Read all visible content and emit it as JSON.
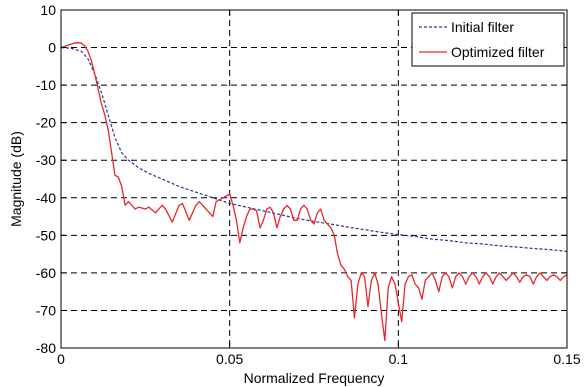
{
  "chart_data": {
    "type": "line",
    "title": "",
    "xlabel": "Normalized Frequency",
    "ylabel": "Magnitude (dB)",
    "xlim": [
      0,
      0.15
    ],
    "ylim": [
      -80,
      10
    ],
    "xticks": [
      0,
      0.05,
      0.1,
      0.15
    ],
    "xtick_labels": [
      "0",
      "0.05",
      "0.1",
      "0.15"
    ],
    "yticks": [
      10,
      0,
      -10,
      -20,
      -30,
      -40,
      -50,
      -60,
      -70,
      -80
    ],
    "ytick_labels": [
      "10",
      "0",
      "-10",
      "-20",
      "-30",
      "-40",
      "-50",
      "-60",
      "-70",
      "-80"
    ],
    "grid": true,
    "legend_position": "top-right",
    "series": [
      {
        "name": "Initial filter",
        "color": "#1f3a93",
        "style": "dashed",
        "x": [
          0,
          0.003,
          0.006,
          0.008,
          0.01,
          0.012,
          0.013,
          0.014,
          0.015,
          0.016,
          0.017,
          0.018,
          0.02,
          0.023,
          0.026,
          0.03,
          0.035,
          0.04,
          0.045,
          0.05,
          0.055,
          0.06,
          0.065,
          0.07,
          0.075,
          0.08,
          0.085,
          0.09,
          0.095,
          0.1,
          0.105,
          0.11,
          0.115,
          0.12,
          0.125,
          0.13,
          0.135,
          0.14,
          0.145,
          0.15
        ],
        "y": [
          0,
          -0.2,
          -1,
          -3,
          -7,
          -12,
          -15,
          -18,
          -21,
          -24,
          -26,
          -28,
          -30,
          -32,
          -33.5,
          -35,
          -37,
          -38.5,
          -40,
          -41.5,
          -42.5,
          -43.5,
          -44.5,
          -45.5,
          -46.3,
          -47,
          -47.8,
          -48.5,
          -49.2,
          -49.8,
          -50.3,
          -51,
          -51.4,
          -52,
          -52.3,
          -52.8,
          -53.1,
          -53.5,
          -53.8,
          -54.3
        ]
      },
      {
        "name": "Optimized filter",
        "color": "#e8262b",
        "style": "solid",
        "x": [
          0,
          0.002,
          0.004,
          0.005,
          0.006,
          0.007,
          0.008,
          0.009,
          0.01,
          0.011,
          0.012,
          0.013,
          0.014,
          0.015,
          0.016,
          0.017,
          0.018,
          0.019,
          0.02,
          0.021,
          0.022,
          0.023,
          0.025,
          0.026,
          0.028,
          0.03,
          0.031,
          0.033,
          0.035,
          0.036,
          0.038,
          0.04,
          0.041,
          0.043,
          0.045,
          0.046,
          0.048,
          0.05,
          0.051,
          0.052,
          0.053,
          0.054,
          0.055,
          0.056,
          0.057,
          0.058,
          0.059,
          0.06,
          0.061,
          0.062,
          0.063,
          0.064,
          0.065,
          0.066,
          0.067,
          0.068,
          0.069,
          0.07,
          0.071,
          0.072,
          0.073,
          0.074,
          0.075,
          0.076,
          0.077,
          0.078,
          0.079,
          0.08,
          0.081,
          0.082,
          0.083,
          0.084,
          0.085,
          0.086,
          0.087,
          0.088,
          0.089,
          0.09,
          0.091,
          0.092,
          0.093,
          0.094,
          0.095,
          0.096,
          0.097,
          0.098,
          0.099,
          0.1,
          0.101,
          0.102,
          0.103,
          0.104,
          0.105,
          0.106,
          0.107,
          0.108,
          0.109,
          0.11,
          0.111,
          0.112,
          0.113,
          0.114,
          0.115,
          0.116,
          0.117,
          0.118,
          0.119,
          0.12,
          0.121,
          0.122,
          0.123,
          0.124,
          0.125,
          0.126,
          0.127,
          0.128,
          0.129,
          0.13,
          0.131,
          0.132,
          0.133,
          0.134,
          0.135,
          0.136,
          0.137,
          0.138,
          0.139,
          0.14,
          0.141,
          0.142,
          0.143,
          0.144,
          0.145,
          0.146,
          0.147,
          0.148,
          0.149,
          0.15
        ],
        "y": [
          0,
          0.6,
          1.2,
          1.3,
          1.2,
          0.5,
          -1,
          -3.5,
          -7,
          -11,
          -15,
          -18,
          -22,
          -28,
          -34,
          -34.5,
          -37,
          -42,
          -41,
          -42,
          -43,
          -42.5,
          -43,
          -42.5,
          -44,
          -42,
          -43,
          -46.5,
          -42,
          -41.5,
          -46,
          -42,
          -41,
          -43,
          -45,
          -41,
          -40,
          -39,
          -42,
          -46,
          -52,
          -48,
          -45,
          -43,
          -43,
          -43.5,
          -48,
          -46,
          -43,
          -42.5,
          -44,
          -48,
          -45,
          -43,
          -42,
          -43,
          -46,
          -46,
          -43,
          -42,
          -43,
          -46,
          -47,
          -44,
          -43,
          -46,
          -47,
          -48,
          -50,
          -55,
          -58,
          -59,
          -61,
          -62,
          -72,
          -63,
          -60,
          -61,
          -69,
          -62,
          -60,
          -63,
          -71,
          -78,
          -64,
          -61,
          -63,
          -68,
          -73,
          -63,
          -61,
          -60.5,
          -63,
          -64,
          -67,
          -62,
          -61,
          -60,
          -62,
          -65,
          -61,
          -60,
          -61,
          -64,
          -61,
          -60,
          -61,
          -63,
          -61,
          -60,
          -61,
          -63,
          -61,
          -60,
          -61,
          -63,
          -61,
          -60,
          -61,
          -62,
          -61,
          -60,
          -61,
          -62.5,
          -61,
          -60.5,
          -61,
          -63,
          -61,
          -60,
          -61,
          -62,
          -61,
          -60.5,
          -61,
          -62,
          -61,
          -60.5
        ]
      }
    ]
  }
}
